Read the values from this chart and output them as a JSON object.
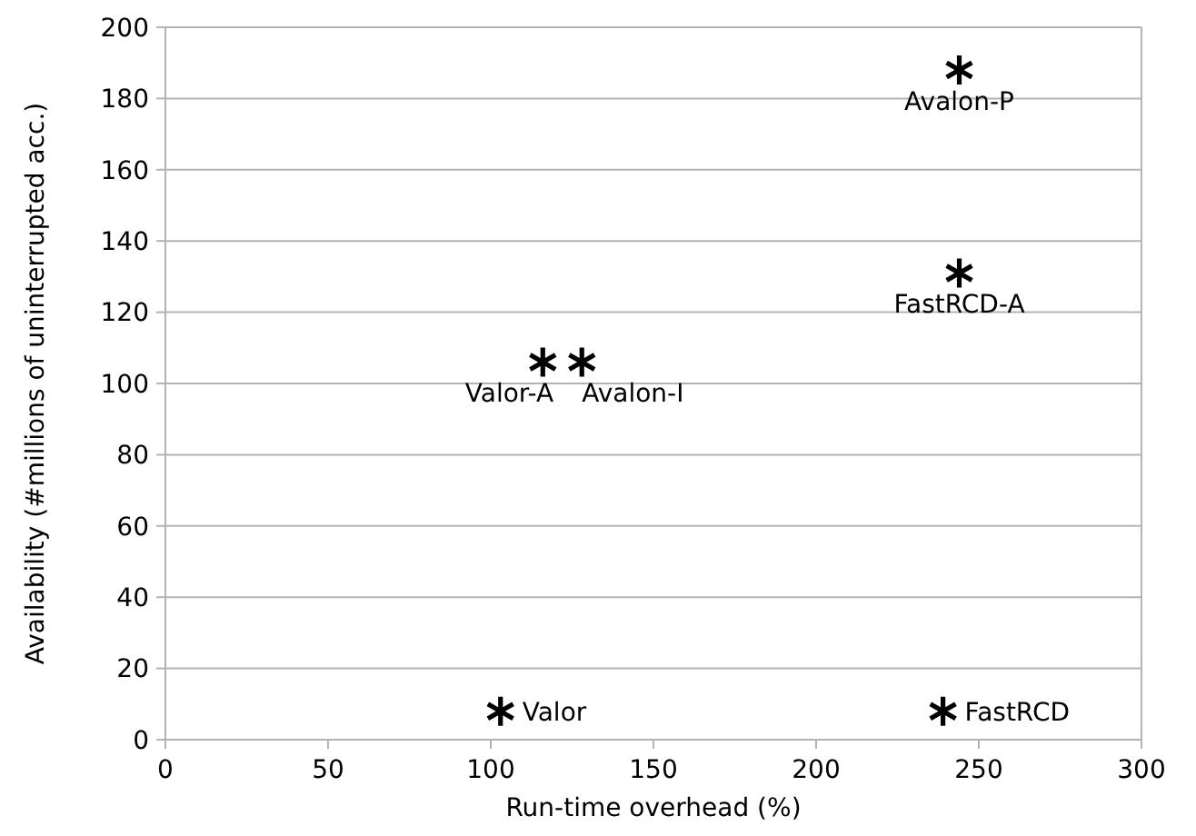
{
  "chart_data": {
    "type": "scatter",
    "xlabel": "Run-time overhead (%)",
    "ylabel": "Availability (#millions of uninterrupted acc.)",
    "series": [
      {
        "name": "Valor",
        "color": "#000000",
        "x": [
          103
        ],
        "values": [
          8
        ]
      },
      {
        "name": "FastRCD",
        "color": "#000000",
        "x": [
          239
        ],
        "values": [
          8
        ]
      },
      {
        "name": "Valor-A",
        "color": "#000000",
        "x": [
          116
        ],
        "values": [
          106
        ]
      },
      {
        "name": "Avalon-I",
        "color": "#000000",
        "x": [
          128
        ],
        "values": [
          106
        ]
      },
      {
        "name": "Avalon-P",
        "color": "#000000",
        "x": [
          244
        ],
        "values": [
          188
        ]
      },
      {
        "name": "FastRCD-A",
        "color": "#000000",
        "x": [
          244
        ],
        "values": [
          131
        ]
      }
    ],
    "marker": "cross",
    "grid": "y",
    "xlim": [
      0,
      300
    ],
    "xticks": [
      0,
      50,
      100,
      150,
      200,
      250,
      300
    ],
    "ylim": [
      0,
      200
    ],
    "yticks": [
      0,
      20,
      40,
      60,
      80,
      100,
      120,
      140,
      160,
      180,
      200
    ]
  }
}
